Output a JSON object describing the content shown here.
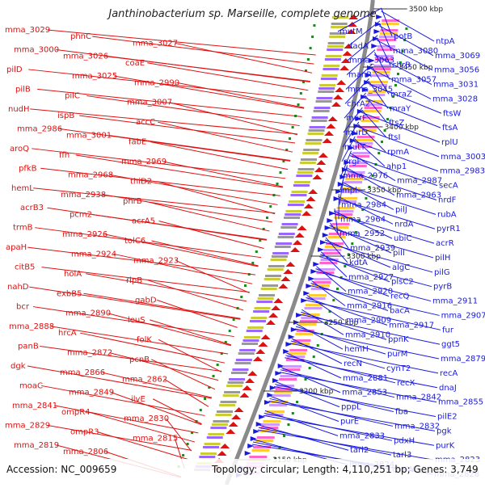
{
  "title": "Janthinobacterium sp. Marseille, complete genome",
  "footer": {
    "accession": "Accession: NC_009659",
    "summary": "Topology: circular; Length: 4,110,251 bp; Genes: 3,749"
  },
  "colors": {
    "forward": "#dd1111",
    "reverse": "#1a1add",
    "backbone": "#8a8a8a",
    "tick": "#1a8a1a"
  },
  "scale_labels": [
    "3500 kbp",
    "3450 kbp",
    "3400 kbp",
    "3350 kbp",
    "3300 kbp",
    "3250 kbp",
    "3200 kbp",
    "3150 kbp"
  ],
  "left_labels": [
    "mma_3029",
    "phnC",
    "mma_3027",
    "mma_3000",
    "mma_3026",
    "coaE",
    "pilD",
    "mma_3025",
    "mma_2990",
    "pilB",
    "pilC",
    "mma_3007",
    "nudH",
    "ispB",
    "accC",
    "mma_2986",
    "mma_3001",
    "fabE",
    "aroQ",
    "ffh",
    "mma_2969",
    "pfkB",
    "mma_2968",
    "thiD2",
    "hemL",
    "mma_2938",
    "phrB",
    "acrB3",
    "pcm2",
    "acrA5",
    "trmB",
    "mma_2926",
    "tolC6",
    "apaH",
    "mma_2924",
    "mma_2923",
    "citB5",
    "holA",
    "rlpB",
    "nahD",
    "exbB5",
    "gabD",
    "bcr",
    "mma_2890",
    "leuS",
    "mma_2888",
    "hrcA",
    "folK",
    "panB",
    "mma_2872",
    "pcnB",
    "dgk",
    "mma_2866",
    "mma_2862",
    "moaC",
    "mma_2849",
    "ilvE",
    "mma_2841",
    "ompR4",
    "mma_2830",
    "mma_2829",
    "ompR3",
    "mma_2815",
    "mma_2819",
    "mma_2806"
  ],
  "right_labels": [
    "mutM",
    "potB",
    "ntpA",
    "fadA",
    "mma_3080",
    "mma_3069",
    "mma_3063",
    "chrB",
    "mma_3056",
    "manR",
    "mma_3057",
    "mma_3031",
    "mma_3045",
    "mraZ",
    "mma_3028",
    "chrA2",
    "mraY",
    "ftsW",
    "murF",
    "ftsZ",
    "ftsA",
    "murD",
    "ftsI",
    "rplU",
    "mutT",
    "rpmA",
    "mma_3003",
    "argF",
    "ahp1",
    "mma_2983",
    "mma_2976",
    "mma_2987",
    "secA",
    "mpl",
    "mma_2963",
    "nrdF",
    "mma_2984",
    "pilJ",
    "rubA",
    "mma_2964",
    "nrdA",
    "pyrR1",
    "mma_2952",
    "ubiC",
    "acrR",
    "mma_2939",
    "pilI",
    "pilH",
    "kdtA",
    "algC",
    "pilG",
    "mma_2927",
    "plsC2",
    "pyrB",
    "mma_2920",
    "recQ",
    "mma_2911",
    "mma_2916",
    "bacA",
    "mma_2907",
    "mma_2909",
    "mma_2917",
    "fur",
    "mma_2910",
    "ppnK",
    "ggt5",
    "hemH",
    "purM",
    "mma_2879",
    "recN",
    "cynT2",
    "recA",
    "mma_2881",
    "recX",
    "dnaJ",
    "mma_2853",
    "mma_2842",
    "mma_2855",
    "pppL",
    "fba",
    "pilE2",
    "purE",
    "mma_2832",
    "pgk",
    "mma_2833",
    "pdxH",
    "purK",
    "tarl2",
    "tarl3",
    "mma_2823",
    "mma_2824",
    "cheW5",
    "mma_2828"
  ]
}
